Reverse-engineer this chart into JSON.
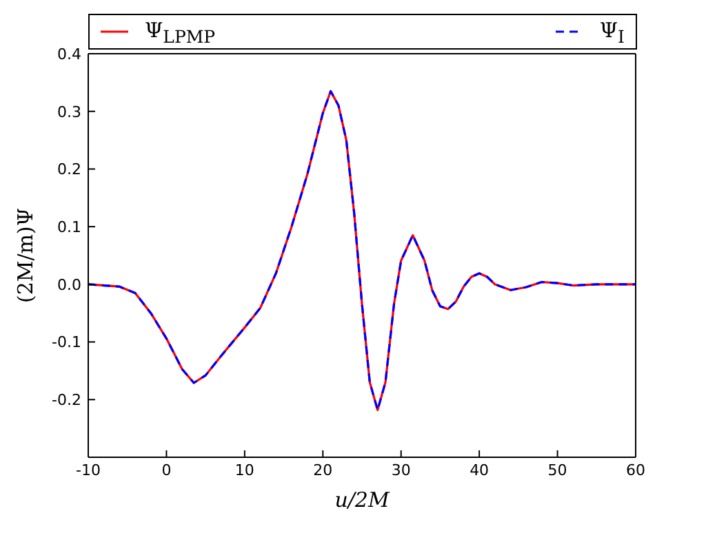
{
  "chart_data": {
    "type": "line",
    "xlabel": "u/2M",
    "ylabel": "(2M/m)Ψ",
    "x": [
      -10,
      -6,
      -4,
      -2,
      0,
      2,
      3.5,
      5,
      7,
      10,
      12,
      14,
      16,
      18,
      20,
      21,
      22,
      23,
      24,
      25,
      26,
      27,
      28,
      29.1,
      30,
      31.5,
      33,
      34,
      35,
      36,
      37,
      38,
      39,
      40,
      41,
      42,
      44,
      46,
      48,
      50,
      52,
      55,
      60
    ],
    "series": [
      {
        "name": "Ψ$_{LPMP}$",
        "color": "#ff0000",
        "line_style": "solid",
        "values": [
          0,
          -0.004,
          -0.015,
          -0.05,
          -0.094,
          -0.147,
          -0.171,
          -0.158,
          -0.124,
          -0.075,
          -0.041,
          0.019,
          0.1,
          0.19,
          0.297,
          0.335,
          0.31,
          0.25,
          0.124,
          -0.034,
          -0.17,
          -0.218,
          -0.17,
          -0.034,
          0.041,
          0.085,
          0.041,
          -0.011,
          -0.038,
          -0.043,
          -0.03,
          -0.004,
          0.013,
          0.019,
          0.013,
          0,
          -0.01,
          -0.005,
          0.004,
          0.002,
          -0.002,
          0,
          0
        ]
      },
      {
        "name": "Ψ$_{I}$",
        "color": "#0000ff",
        "line_style": "dashed",
        "values": [
          0,
          -0.004,
          -0.015,
          -0.05,
          -0.094,
          -0.147,
          -0.171,
          -0.158,
          -0.124,
          -0.075,
          -0.041,
          0.019,
          0.1,
          0.19,
          0.297,
          0.335,
          0.31,
          0.25,
          0.124,
          -0.034,
          -0.17,
          -0.218,
          -0.17,
          -0.034,
          0.041,
          0.085,
          0.041,
          -0.011,
          -0.038,
          -0.043,
          -0.03,
          -0.004,
          0.013,
          0.019,
          0.013,
          0,
          -0.01,
          -0.005,
          0.004,
          0.002,
          -0.002,
          0,
          0
        ]
      }
    ],
    "xlim": [
      -10,
      60
    ],
    "xticks": [
      -10,
      0,
      10,
      20,
      30,
      40,
      50,
      60
    ],
    "ylim": [
      -0.3,
      0.4
    ],
    "yticks": [
      -0.2,
      -0.1,
      {
        "value": 0,
        "label": "0.0"
      },
      0.1,
      0.2,
      0.3,
      0.4
    ],
    "grid": false,
    "legend": "top",
    "marker": "none"
  }
}
